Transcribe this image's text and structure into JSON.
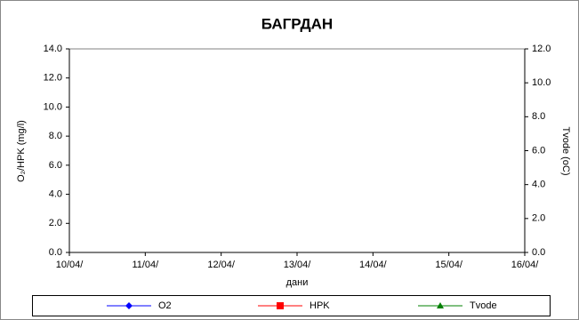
{
  "chart_data": {
    "type": "line",
    "title": "БАГРДАН",
    "xlabel": "дани",
    "ylabel": "O₂/HPK (mg/l)",
    "y2label": "Tvode (oC)",
    "categories": [
      "10/04/",
      "11/04/",
      "12/04/",
      "13/04/",
      "14/04/",
      "15/04/",
      "16/04/"
    ],
    "series": [
      {
        "name": "O2",
        "color": "#0000ff",
        "marker": "diamond",
        "values": [
          null,
          null,
          null,
          null,
          null,
          null,
          null
        ]
      },
      {
        "name": "HPK",
        "color": "#ff0000",
        "marker": "square",
        "values": [
          null,
          null,
          null,
          null,
          null,
          null,
          null
        ]
      },
      {
        "name": "Tvode",
        "color": "#008000",
        "marker": "triangle",
        "axis": "y2",
        "values": [
          null,
          null,
          null,
          null,
          null,
          null,
          null
        ]
      }
    ],
    "ylim": [
      0,
      14
    ],
    "yticks": [
      {
        "value": 0,
        "label": "0.0"
      },
      {
        "value": 2,
        "label": "2.0"
      },
      {
        "value": 4,
        "label": "4.0"
      },
      {
        "value": 6,
        "label": "6.0"
      },
      {
        "value": 8,
        "label": "8.0"
      },
      {
        "value": 10,
        "label": "10.0"
      },
      {
        "value": 12,
        "label": "12.0"
      },
      {
        "value": 14,
        "label": "14.0"
      }
    ],
    "y2lim": [
      0,
      12
    ],
    "y2ticks": [
      {
        "value": 0,
        "label": "0.0"
      },
      {
        "value": 2,
        "label": "2.0"
      },
      {
        "value": 4,
        "label": "4.0"
      },
      {
        "value": 6,
        "label": "6.0"
      },
      {
        "value": 8,
        "label": "8.0"
      },
      {
        "value": 10,
        "label": "10.0"
      },
      {
        "value": 12,
        "label": "12.0"
      }
    ],
    "legend": "bottom"
  }
}
